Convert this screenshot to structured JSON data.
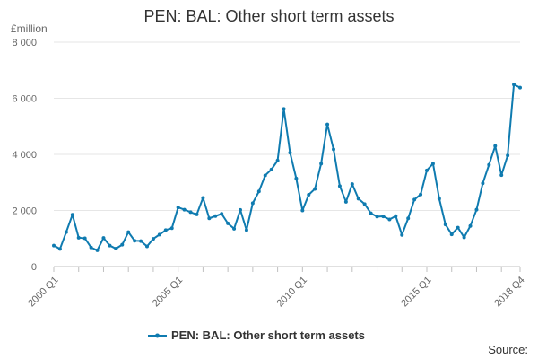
{
  "chart_data": {
    "type": "line",
    "title": "PEN: BAL: Other short term assets",
    "ylabel": "£million",
    "xlabel": "",
    "ylim": [
      0,
      8000
    ],
    "yticks": [
      0,
      2000,
      4000,
      6000,
      8000
    ],
    "ytick_labels": [
      "0",
      "2 000",
      "4 000",
      "6 000",
      "8 000"
    ],
    "xtick_labels": [
      {
        "label": "2000 Q1",
        "index": 0
      },
      {
        "label": "2005 Q1",
        "index": 20
      },
      {
        "label": "2010 Q1",
        "index": 40
      },
      {
        "label": "2015 Q1",
        "index": 60
      },
      {
        "label": "2018 Q4",
        "index": 75
      }
    ],
    "grid": true,
    "legend_position": "bottom",
    "source_label": "Source:",
    "series": [
      {
        "name": "PEN: BAL: Other short term assets",
        "color": "#0f7bb0",
        "values": [
          750,
          630,
          1230,
          1850,
          1030,
          1010,
          680,
          580,
          1020,
          750,
          640,
          780,
          1230,
          920,
          910,
          720,
          990,
          1140,
          1300,
          1370,
          2110,
          2030,
          1940,
          1860,
          2450,
          1720,
          1800,
          1880,
          1540,
          1350,
          2020,
          1300,
          2260,
          2680,
          3250,
          3460,
          3780,
          5620,
          4060,
          3140,
          2000,
          2560,
          2770,
          3670,
          5070,
          4180,
          2870,
          2310,
          2940,
          2420,
          2230,
          1900,
          1780,
          1790,
          1680,
          1800,
          1130,
          1720,
          2390,
          2570,
          3430,
          3670,
          2420,
          1500,
          1150,
          1390,
          1040,
          1450,
          2030,
          2970,
          3630,
          4300,
          3260,
          3960,
          6490,
          6380
        ]
      }
    ]
  }
}
